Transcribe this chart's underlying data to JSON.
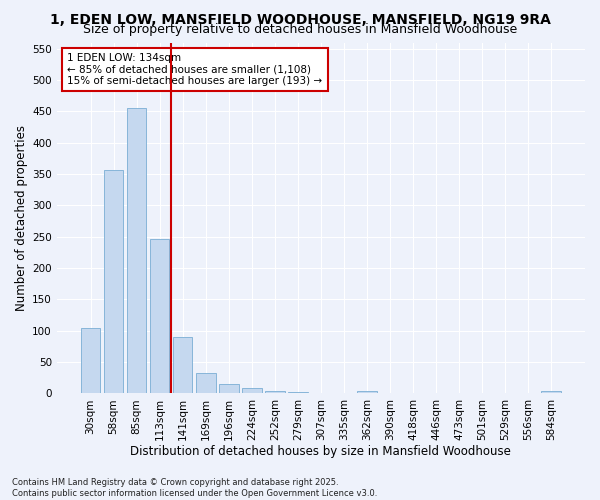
{
  "title": "1, EDEN LOW, MANSFIELD WOODHOUSE, MANSFIELD, NG19 9RA",
  "subtitle": "Size of property relative to detached houses in Mansfield Woodhouse",
  "xlabel": "Distribution of detached houses by size in Mansfield Woodhouse",
  "ylabel": "Number of detached properties",
  "footnote1": "Contains HM Land Registry data © Crown copyright and database right 2025.",
  "footnote2": "Contains public sector information licensed under the Open Government Licence v3.0.",
  "bar_labels": [
    "30sqm",
    "58sqm",
    "85sqm",
    "113sqm",
    "141sqm",
    "169sqm",
    "196sqm",
    "224sqm",
    "252sqm",
    "279sqm",
    "307sqm",
    "335sqm",
    "362sqm",
    "390sqm",
    "418sqm",
    "446sqm",
    "473sqm",
    "501sqm",
    "529sqm",
    "556sqm",
    "584sqm"
  ],
  "bar_values": [
    105,
    357,
    456,
    246,
    90,
    33,
    15,
    9,
    3,
    2,
    0,
    0,
    4,
    0,
    0,
    0,
    0,
    0,
    0,
    0,
    4
  ],
  "bar_color": "#c5d8ef",
  "bar_edge_color": "#7aaed4",
  "ylim": [
    0,
    560
  ],
  "yticks": [
    0,
    50,
    100,
    150,
    200,
    250,
    300,
    350,
    400,
    450,
    500,
    550
  ],
  "vline_index": 4,
  "vline_color": "#cc0000",
  "annotation_title": "1 EDEN LOW: 134sqm",
  "annotation_line1": "← 85% of detached houses are smaller (1,108)",
  "annotation_line2": "15% of semi-detached houses are larger (193) →",
  "annotation_box_color": "#cc0000",
  "bg_color": "#eef2fb",
  "grid_color": "#ffffff",
  "title_fontsize": 10,
  "subtitle_fontsize": 9,
  "axis_label_fontsize": 8.5,
  "tick_fontsize": 7.5,
  "annotation_fontsize": 7.5,
  "footnote_fontsize": 6
}
